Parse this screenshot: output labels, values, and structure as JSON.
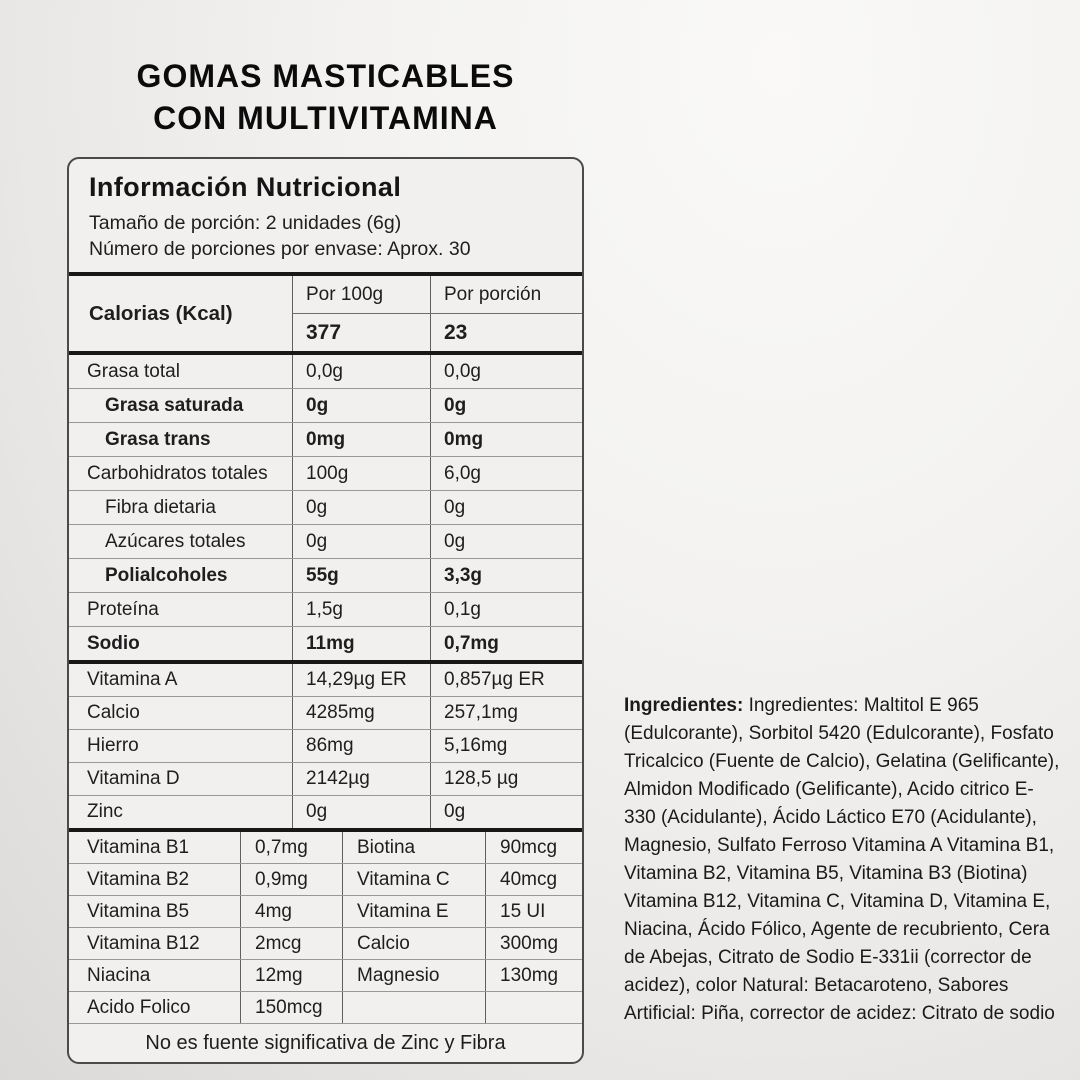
{
  "page": {
    "title_line1": "GOMAS MASTICABLES",
    "title_line2": "CON MULTIVITAMINA"
  },
  "panel": {
    "header": {
      "title": "Información Nutricional",
      "serving_size": "Tamaño de porción: 2 unidades (6g)",
      "servings_per_container": "Número de porciones por envase: Aprox. 30"
    },
    "calories": {
      "label": "Calorias (Kcal)",
      "col1_header": "Por 100g",
      "col2_header": "Por porción",
      "per_100g": "377",
      "per_serving": "23"
    },
    "rows_a": [
      {
        "label": "Grasa total",
        "per_100g": "0,0g",
        "per_serving": "0,0g"
      },
      {
        "label": "Grasa saturada",
        "per_100g": "0g",
        "per_serving": "0g"
      },
      {
        "label": "Grasa trans",
        "per_100g": "0mg",
        "per_serving": "0mg"
      },
      {
        "label": "Carbohidratos totales",
        "per_100g": "100g",
        "per_serving": "6,0g"
      },
      {
        "label": "Fibra dietaria",
        "per_100g": "0g",
        "per_serving": "0g"
      },
      {
        "label": "Azúcares totales",
        "per_100g": "0g",
        "per_serving": "0g"
      },
      {
        "label": "Polialcoholes",
        "per_100g": "55g",
        "per_serving": "3,3g"
      },
      {
        "label": "Proteína",
        "per_100g": "1,5g",
        "per_serving": "0,1g"
      },
      {
        "label": "Sodio",
        "per_100g": "11mg",
        "per_serving": "0,7mg"
      }
    ],
    "rows_b": [
      {
        "label": "Vitamina A",
        "per_100g": "14,29µg ER",
        "per_serving": "0,857µg ER"
      },
      {
        "label": "Calcio",
        "per_100g": "4285mg",
        "per_serving": "257,1mg"
      },
      {
        "label": "Hierro",
        "per_100g": "86mg",
        "per_serving": "5,16mg"
      },
      {
        "label": "Vitamina D",
        "per_100g": "2142µg",
        "per_serving": "128,5 µg"
      },
      {
        "label": "Zinc",
        "per_100g": "0g",
        "per_serving": "0g"
      }
    ],
    "rows_c": [
      {
        "label1": "Vitamina B1",
        "value1": "0,7mg",
        "label2": "Biotina",
        "value2": "90mcg"
      },
      {
        "label1": "Vitamina B2",
        "value1": "0,9mg",
        "label2": "Vitamina C",
        "value2": "40mcg"
      },
      {
        "label1": "Vitamina B5",
        "value1": "4mg",
        "label2": "Vitamina E",
        "value2": "15 UI"
      },
      {
        "label1": "Vitamina B12",
        "value1": "2mcg",
        "label2": "Calcio",
        "value2": "300mg"
      },
      {
        "label1": "Niacina",
        "value1": "12mg",
        "label2": "Magnesio",
        "value2": "130mg"
      },
      {
        "label1": "Acido Folico",
        "value1": "150mcg",
        "label2": "",
        "value2": ""
      }
    ],
    "footnote": "No es fuente significativa de Zinc y Fibra"
  },
  "ingredients": {
    "lead": "Ingredientes:",
    "text": " Ingredientes: Maltitol E 965 (Edulcorante), Sorbitol 5420 (Edulcorante), Fosfato Tricalcico (Fuente de Calcio), Gelatina (Gelificante), Almidon Modificado (Gelificante), Acido citrico E-330 (Acidulante), Ácido Láctico E70 (Acidulante), Magnesio, Sulfato Ferroso Vitamina A Vitamina B1, Vitamina B2, Vitamina B5, Vitamina B3 (Biotina) Vitamina B12, Vitamina C, Vitamina D, Vitamina E, Niacina, Ácido Fólico, Agente de recubriento, Cera de Abejas, Citrato de Sodio E-331ii (corrector de acidez), color Natural: Betacaroteno, Sabores Artificial: Piña, corrector de acidez: Citrato de sodio"
  },
  "colors": {
    "text": "#1f1d1e",
    "panel_background": "#f1f0ee",
    "thick_rule": "#171717"
  }
}
